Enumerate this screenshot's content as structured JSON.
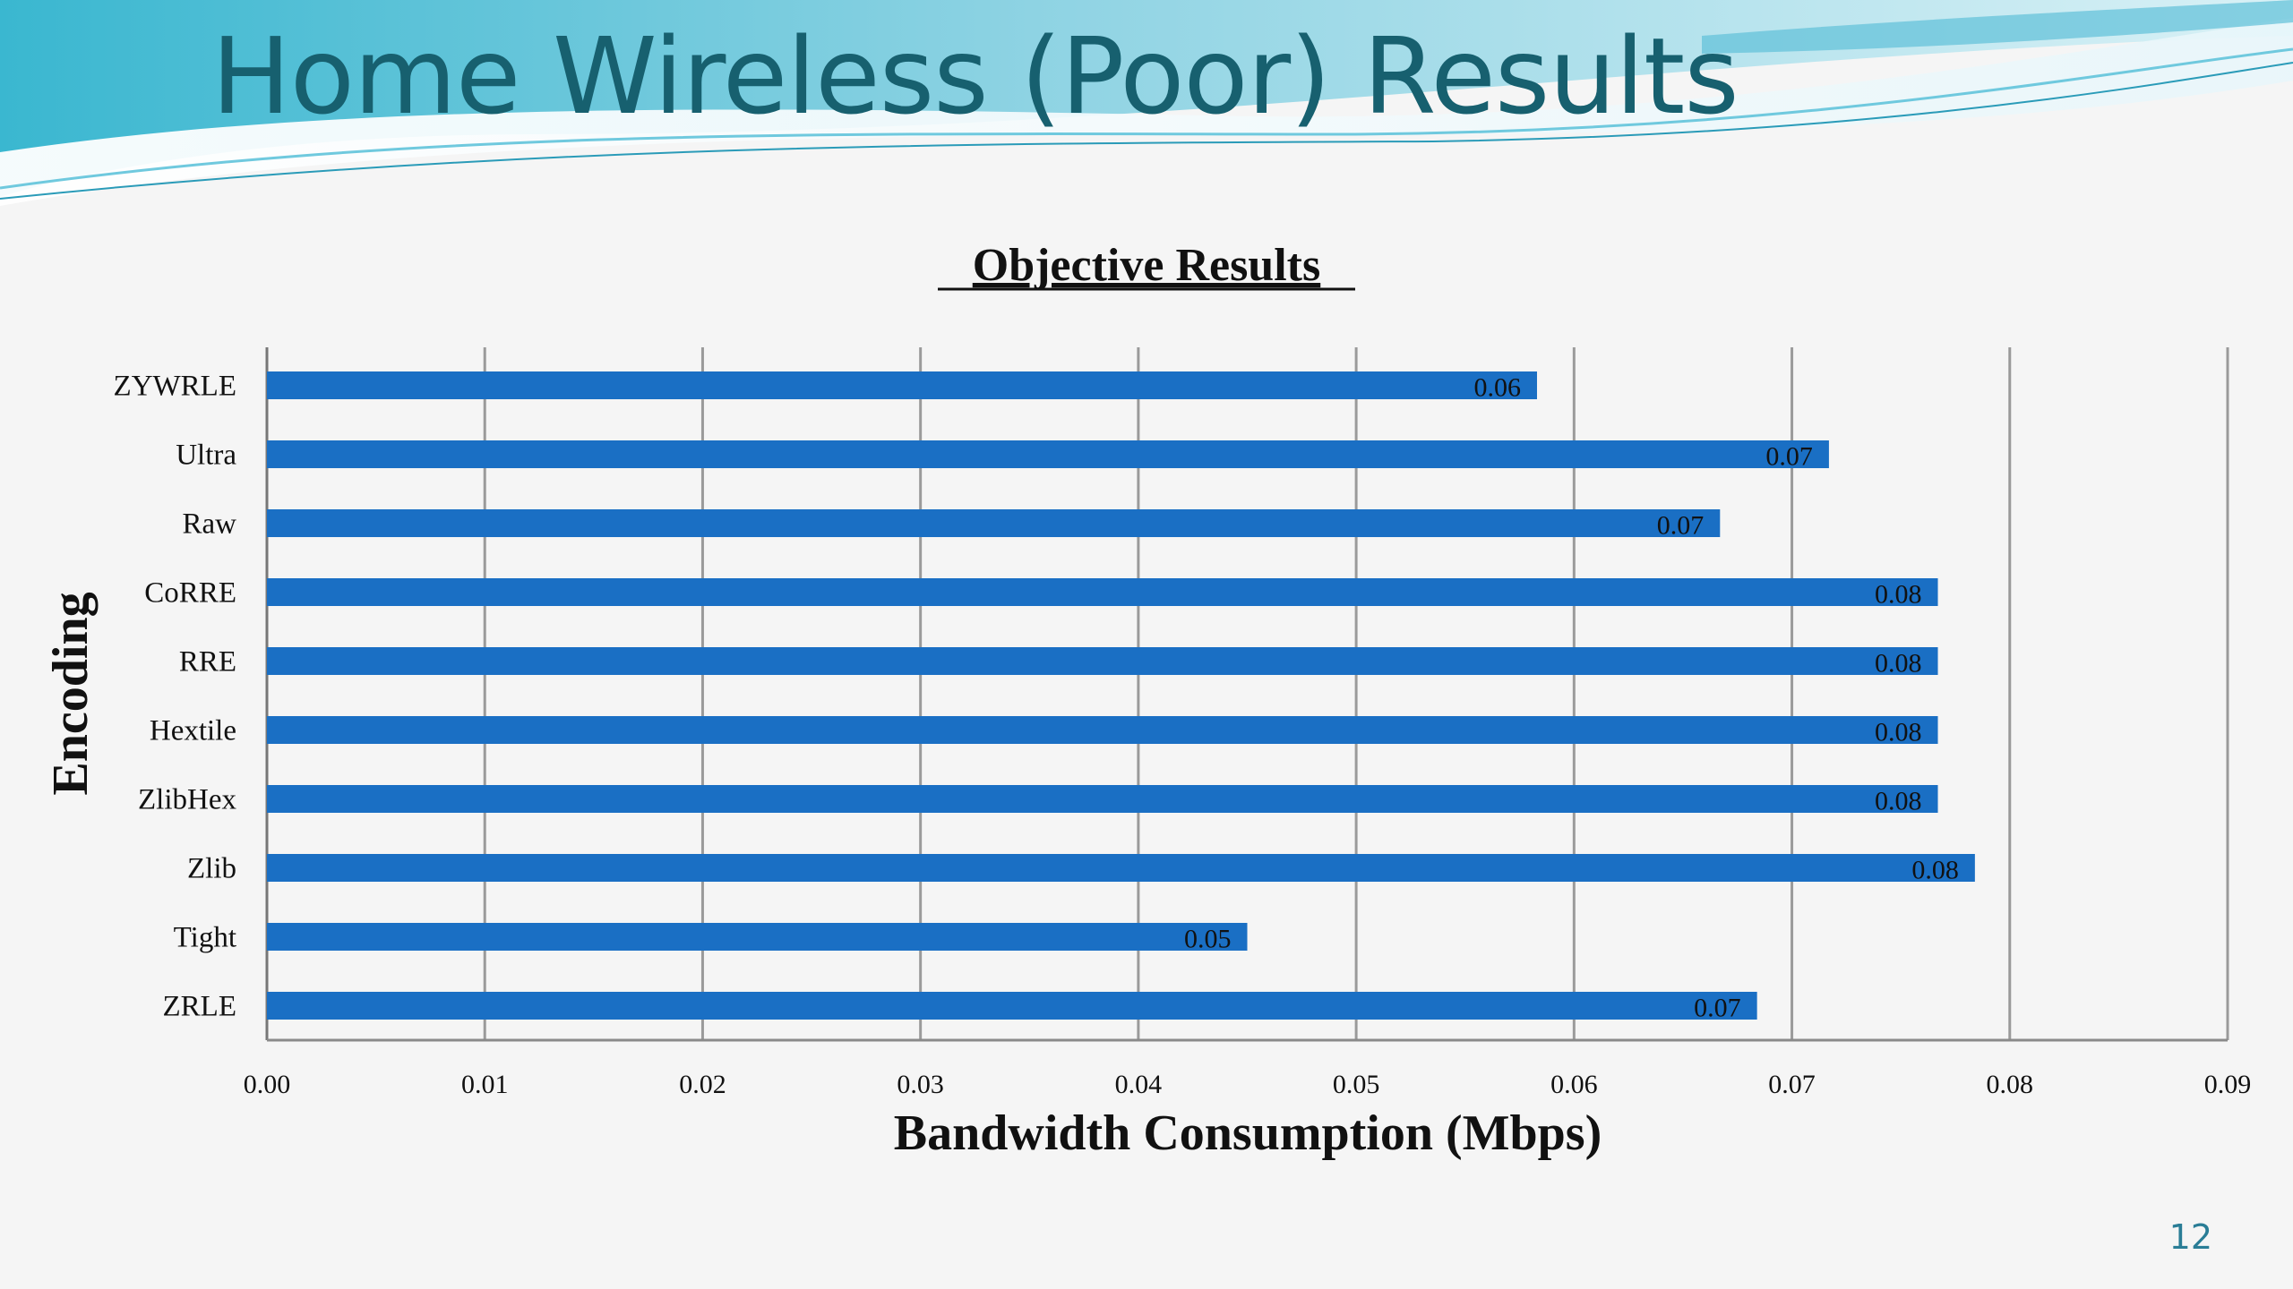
{
  "slide": {
    "title": "Home Wireless (Poor) Results",
    "page_number": "12",
    "colors": {
      "title": "#17606f",
      "bar": "#1a6fc4",
      "swoosh_light": "#bde7ef",
      "swoosh_mid": "#6fc9de",
      "swoosh_dark": "#2a9bb8"
    }
  },
  "chart_data": {
    "type": "bar",
    "orientation": "horizontal",
    "title": "Objective Results",
    "xlabel": "Bandwidth Consumption (Mbps)",
    "ylabel": "Encoding",
    "xlim": [
      0,
      0.09
    ],
    "x_ticks": [
      "0.00",
      "0.01",
      "0.02",
      "0.03",
      "0.04",
      "0.05",
      "0.06",
      "0.07",
      "0.08",
      "0.09"
    ],
    "grid": true,
    "categories": [
      "ZYWRLE",
      "Ultra",
      "Raw",
      "CoRRE",
      "RRE",
      "Hextile",
      "ZlibHex",
      "Zlib",
      "Tight",
      "ZRLE"
    ],
    "values": [
      0.0583,
      0.0717,
      0.0667,
      0.0767,
      0.0767,
      0.0767,
      0.0767,
      0.0784,
      0.045,
      0.0684
    ],
    "data_labels": [
      "0.06",
      "0.07",
      "0.07",
      "0.08",
      "0.08",
      "0.08",
      "0.08",
      "0.08",
      "0.05",
      "0.07"
    ]
  }
}
